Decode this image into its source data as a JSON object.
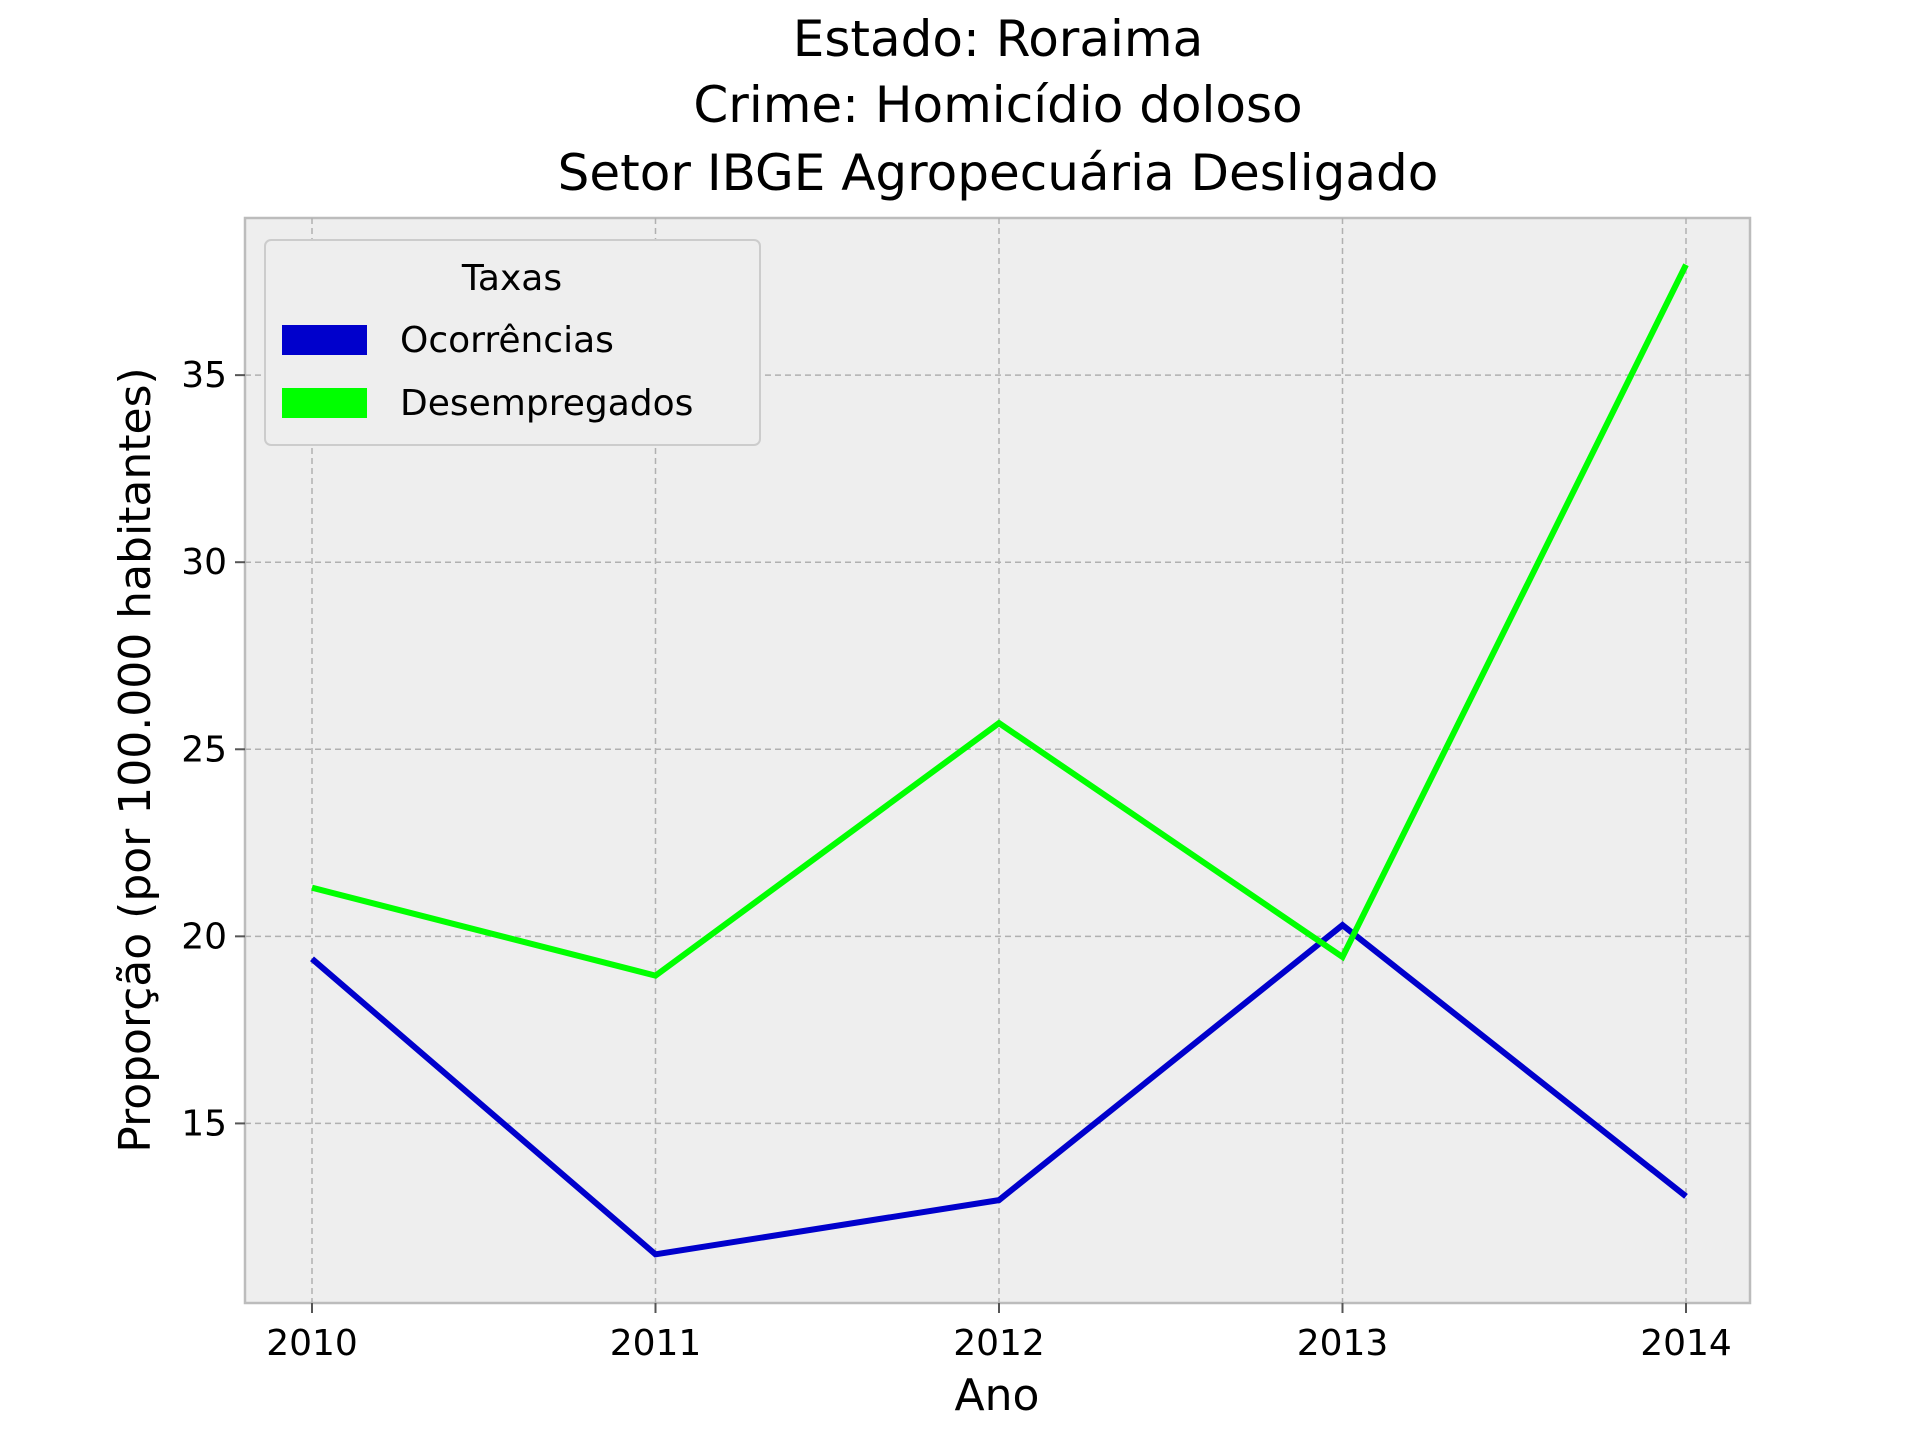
{
  "chart_data": {
    "type": "line",
    "title": [
      "Estado: Roraima",
      "Crime: Homicídio doloso",
      "Setor IBGE  Agropecuária   Desligado"
    ],
    "xlabel": "Ano",
    "ylabel": "Proporção (por 100.000 habitantes)",
    "categories": [
      "2010",
      "2011",
      "2012",
      "2013",
      "2014"
    ],
    "yticks": [
      15,
      20,
      25,
      30,
      35
    ],
    "ytick_labels": [
      "15",
      "20",
      "25",
      "30",
      "35"
    ],
    "ylim": [
      10.2,
      39.2
    ],
    "grid": true,
    "legend": {
      "title": "Taxas",
      "location": "top-left"
    },
    "series": [
      {
        "name": "Ocorrências",
        "color": "#0000cc",
        "values": [
          19.4,
          11.5,
          12.95,
          20.3,
          13.05
        ]
      },
      {
        "name": "Desempregados",
        "color": "#00ff00",
        "values": [
          21.3,
          18.95,
          25.7,
          19.45,
          37.95
        ]
      }
    ]
  }
}
